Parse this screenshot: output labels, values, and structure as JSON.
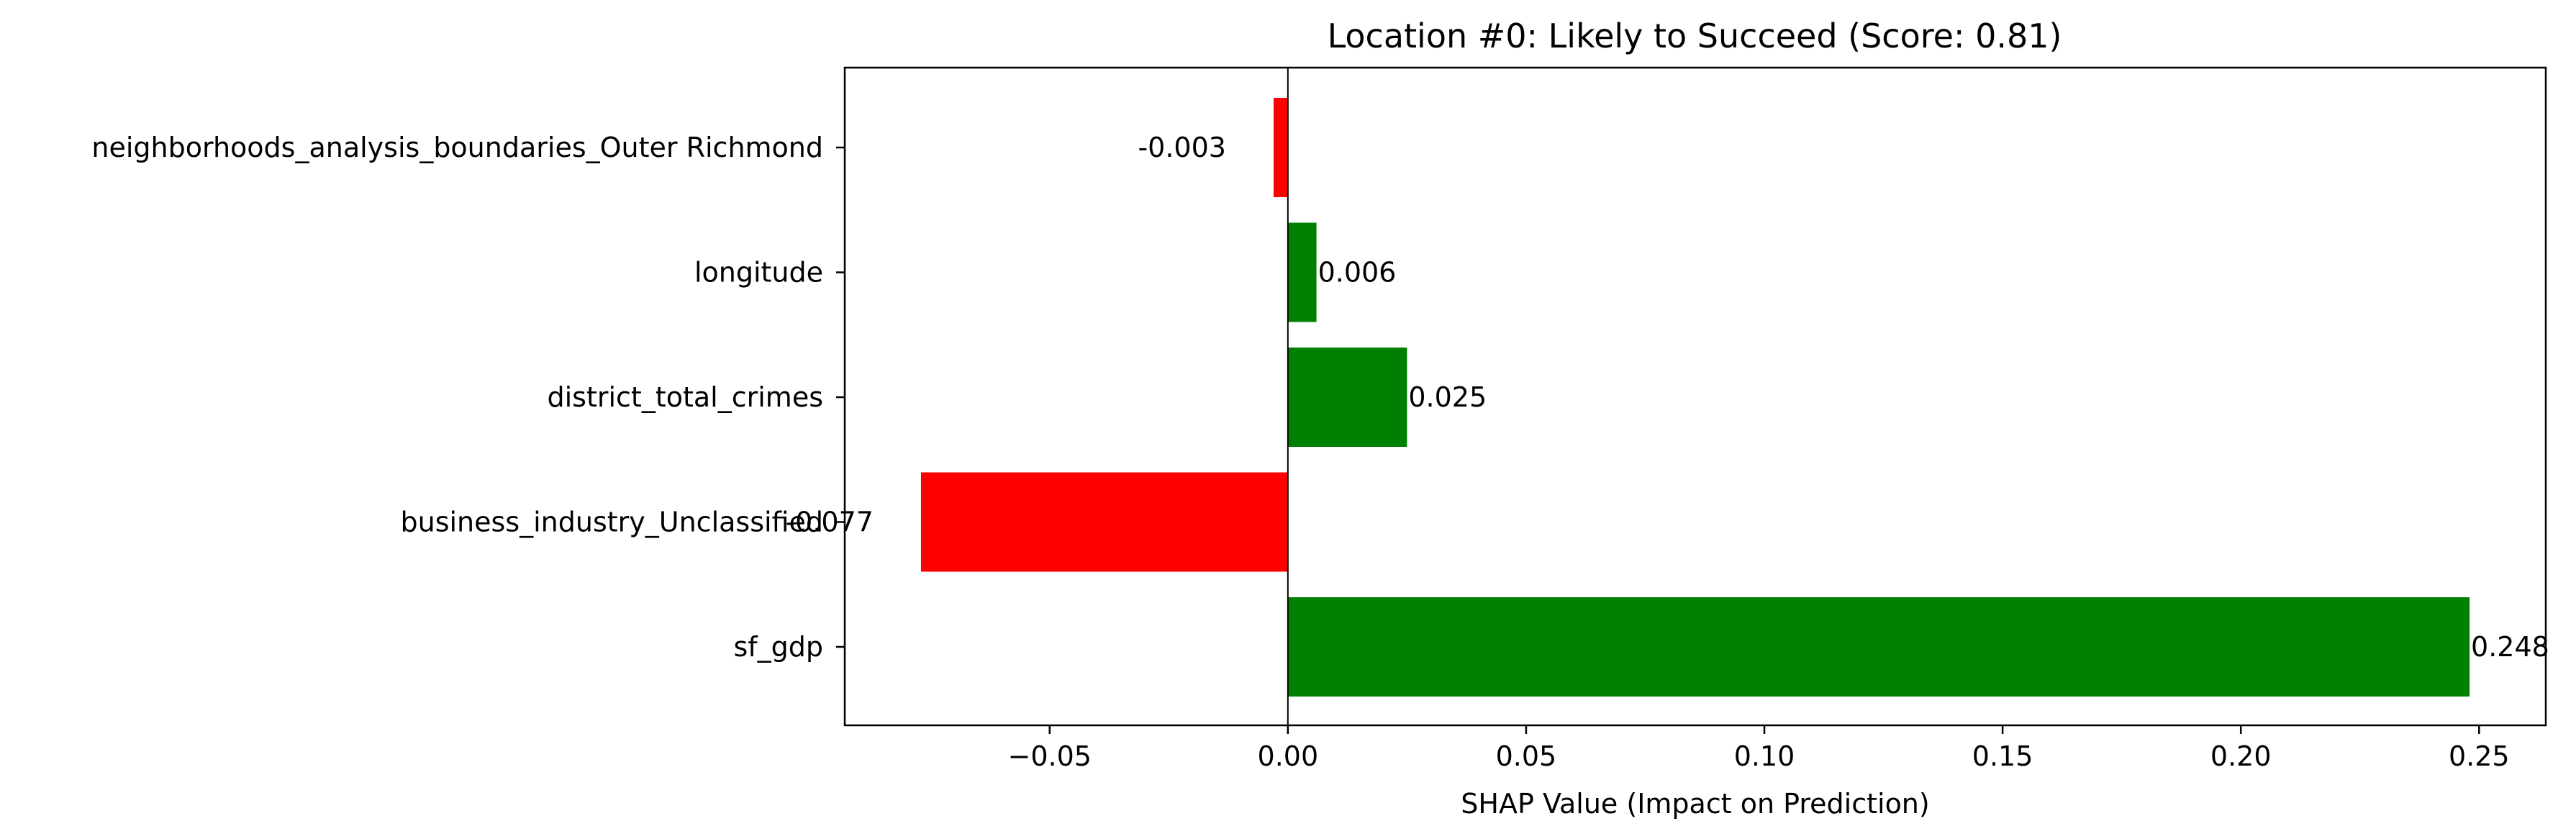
{
  "chart_data": {
    "type": "bar",
    "orientation": "horizontal",
    "title": "Location #0: Likely to Succeed (Score: 0.81)",
    "xlabel": "SHAP Value (Impact on Prediction)",
    "ylabel": "",
    "categories": [
      "neighborhoods_analysis_boundaries_Outer Richmond",
      "longitude",
      "district_total_crimes",
      "business_industry_Unclassified",
      "sf_gdp"
    ],
    "values": [
      -0.003,
      0.006,
      0.025,
      -0.077,
      0.248
    ],
    "value_labels": [
      "-0.003",
      "0.006",
      "0.025",
      "-0.077",
      "0.248"
    ],
    "xlim": [
      -0.093,
      0.264
    ],
    "xticks": [
      -0.05,
      0.0,
      0.05,
      0.1,
      0.15,
      0.2,
      0.25
    ],
    "xtick_labels": [
      "−0.05",
      "0.00",
      "0.05",
      "0.10",
      "0.15",
      "0.20",
      "0.25"
    ],
    "grid": false,
    "legend": "none",
    "colors": {
      "positive": "#008000",
      "negative": "#ff0000",
      "zero_line": "#000000"
    }
  }
}
